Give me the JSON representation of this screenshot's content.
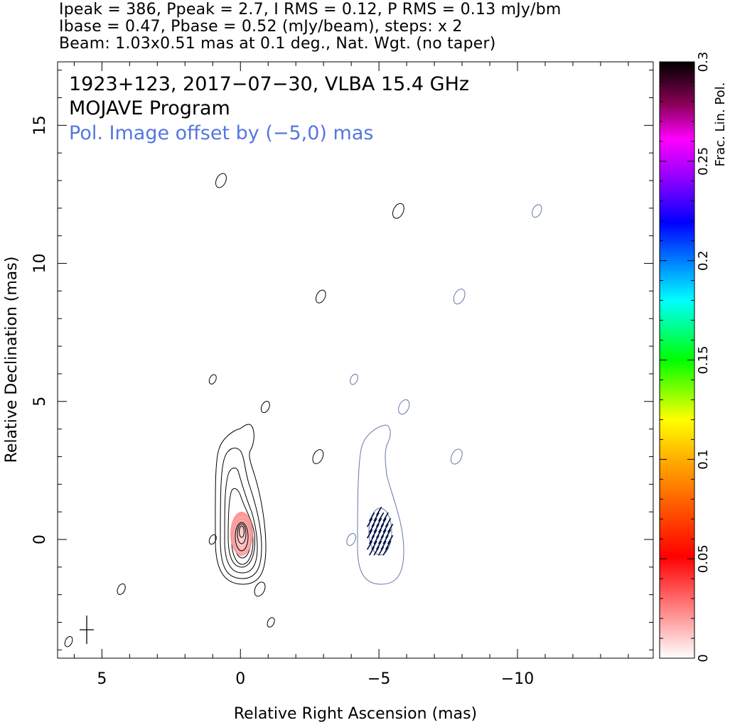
{
  "header": {
    "line1": "Ipeak = 386, Ppeak = 2.7, I RMS = 0.12, P RMS = 0.13 mJy/bm",
    "line2": "Ibase = 0.47, Pbase = 0.52 (mJy/beam), steps: x 2",
    "line3": "Beam: 1.03x0.51 mas at 0.1 deg., Nat. Wgt. (no taper)"
  },
  "chart_data": {
    "type": "contour",
    "annotations": {
      "source_line": "1923+123, 2017−07−30, VLBA 15.4 GHz",
      "program_line": "MOJAVE Program",
      "offset_line": "Pol. Image offset by (−5,0) mas"
    },
    "offset_color": "#5577dd",
    "xlabel": "Relative Right Ascension (mas)",
    "ylabel": "Relative Declination (mas)",
    "xlim": [
      6.6,
      -14.9
    ],
    "ylim": [
      -4.3,
      17.3
    ],
    "x_reversed": true,
    "x_major_ticks": [
      5,
      0,
      -5,
      -10
    ],
    "x_tick_labels": [
      "5",
      "0",
      "−5",
      "−10"
    ],
    "y_major_ticks": [
      0,
      5,
      10,
      15
    ],
    "y_tick_labels": [
      "0",
      "5",
      "10",
      "15"
    ],
    "beam": {
      "major_mas": 1.03,
      "minor_mas": 0.51,
      "pa_deg": 0.1,
      "center": [
        5.6,
        -3.2
      ]
    },
    "stokes_i": {
      "peak_mJy_per_beam": 386,
      "base_mJy_per_beam": 0.47,
      "step_factor": 2,
      "core": [
        0.0,
        0.2
      ],
      "contour_color": "#000000",
      "islands": [
        [
          0.7,
          13.0
        ],
        [
          -5.7,
          11.9
        ],
        [
          -2.9,
          8.8
        ],
        [
          1.0,
          5.8
        ],
        [
          -0.9,
          4.8
        ],
        [
          -2.8,
          3.0
        ],
        [
          1.0,
          0.0
        ],
        [
          4.3,
          -1.8
        ],
        [
          -0.7,
          -1.8
        ],
        [
          -1.1,
          -3.0
        ],
        [
          6.2,
          -3.7
        ]
      ]
    },
    "polarization": {
      "peak_mJy_per_beam": 2.7,
      "base_mJy_per_beam": 0.52,
      "offset_mas": [
        -5,
        0
      ],
      "contour_color": "#6677aa",
      "evpa_color": "#001144",
      "islands": [
        [
          -10.7,
          11.9
        ],
        [
          -7.9,
          8.8
        ],
        [
          -4.1,
          5.8
        ],
        [
          -5.9,
          4.8
        ],
        [
          -7.8,
          3.0
        ],
        [
          -4.0,
          0.0
        ]
      ]
    },
    "fractional_pol_colorbar": {
      "label": "Frac. Lin. Pol.",
      "range": [
        0,
        0.3
      ],
      "tick_values": [
        0,
        0.05,
        0.1,
        0.15,
        0.2,
        0.25,
        0.3
      ],
      "tick_labels": [
        "0",
        "0.05",
        "0.1",
        "0.15",
        "0.2",
        "0.25",
        "0.3"
      ],
      "core_fraction": 0.03
    },
    "grid": false
  }
}
